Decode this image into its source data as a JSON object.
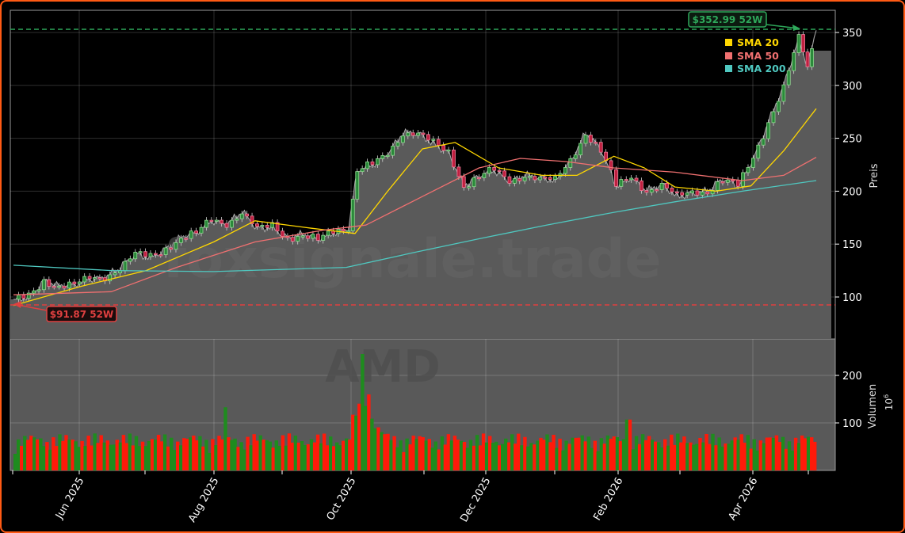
{
  "chart_data": {
    "type": "candlestick",
    "ticker": "AMD",
    "watermark": "foxsignale.trade",
    "ylabel": "Preis",
    "volume_ylabel": "Volumen",
    "volume_unit": "10^6",
    "price_ylim": [
      79,
      371
    ],
    "volume_ylim": [
      0,
      277
    ],
    "price_yticks": [
      100,
      150,
      200,
      250,
      300,
      350
    ],
    "volume_yticks": [
      100,
      200
    ],
    "xticks": [
      "Jun 2025",
      "Aug 2025",
      "Oct 2025",
      "Dec 2025",
      "Feb 2026",
      "Apr 2026"
    ],
    "legend": [
      {
        "label": "SMA 20",
        "color": "#ffd700"
      },
      {
        "label": "SMA 50",
        "color": "#f07070"
      },
      {
        "label": "SMA 200",
        "color": "#4fc8c0"
      }
    ],
    "high_52w": {
      "value": 352.99,
      "label": "$352.99 52W",
      "color": "#2ea85a"
    },
    "low_52w": {
      "value": 91.87,
      "label": "$91.87 52W",
      "color": "#e04040"
    },
    "close_series": [
      [
        "2025-05-01",
        97
      ],
      [
        "2025-05-08",
        100
      ],
      [
        "2025-05-15",
        115
      ],
      [
        "2025-05-22",
        111
      ],
      [
        "2025-05-29",
        112
      ],
      [
        "2025-06-05",
        117
      ],
      [
        "2025-06-12",
        118
      ],
      [
        "2025-06-19",
        128
      ],
      [
        "2025-06-26",
        141
      ],
      [
        "2025-07-03",
        137
      ],
      [
        "2025-07-10",
        145
      ],
      [
        "2025-07-17",
        157
      ],
      [
        "2025-07-24",
        161
      ],
      [
        "2025-07-31",
        172
      ],
      [
        "2025-08-07",
        168
      ],
      [
        "2025-08-14",
        181
      ],
      [
        "2025-08-21",
        165
      ],
      [
        "2025-08-28",
        166
      ],
      [
        "2025-09-04",
        155
      ],
      [
        "2025-09-11",
        160
      ],
      [
        "2025-09-18",
        155
      ],
      [
        "2025-09-25",
        160
      ],
      [
        "2025-10-02",
        164
      ],
      [
        "2025-10-06",
        220
      ],
      [
        "2025-10-13",
        225
      ],
      [
        "2025-10-20",
        235
      ],
      [
        "2025-10-27",
        255
      ],
      [
        "2025-11-03",
        255
      ],
      [
        "2025-11-10",
        245
      ],
      [
        "2025-11-17",
        236
      ],
      [
        "2025-11-24",
        205
      ],
      [
        "2025-12-01",
        215
      ],
      [
        "2025-12-08",
        220
      ],
      [
        "2025-12-15",
        208
      ],
      [
        "2025-12-22",
        215
      ],
      [
        "2025-12-29",
        213
      ],
      [
        "2026-01-05",
        210
      ],
      [
        "2026-01-12",
        228
      ],
      [
        "2026-01-19",
        255
      ],
      [
        "2026-01-26",
        240
      ],
      [
        "2026-02-02",
        205
      ],
      [
        "2026-02-09",
        212
      ],
      [
        "2026-02-16",
        200
      ],
      [
        "2026-02-23",
        207
      ],
      [
        "2026-03-02",
        195
      ],
      [
        "2026-03-09",
        198
      ],
      [
        "2026-03-16",
        200
      ],
      [
        "2026-03-23",
        212
      ],
      [
        "2026-03-30",
        205
      ],
      [
        "2026-04-06",
        230
      ],
      [
        "2026-04-13",
        265
      ],
      [
        "2026-04-20",
        300
      ],
      [
        "2026-04-27",
        345
      ],
      [
        "2026-05-01",
        318
      ],
      [
        "2026-05-05",
        352
      ]
    ],
    "sma20": [
      [
        "2025-05-01",
        92
      ],
      [
        "2025-06-01",
        110
      ],
      [
        "2025-07-01",
        125
      ],
      [
        "2025-08-01",
        152
      ],
      [
        "2025-08-20",
        172
      ],
      [
        "2025-09-15",
        165
      ],
      [
        "2025-10-05",
        160
      ],
      [
        "2025-10-20",
        200
      ],
      [
        "2025-11-05",
        240
      ],
      [
        "2025-11-20",
        246
      ],
      [
        "2025-12-10",
        222
      ],
      [
        "2025-12-30",
        215
      ],
      [
        "2026-01-15",
        215
      ],
      [
        "2026-02-01",
        233
      ],
      [
        "2026-02-15",
        222
      ],
      [
        "2026-03-01",
        204
      ],
      [
        "2026-03-20",
        200
      ],
      [
        "2026-04-05",
        205
      ],
      [
        "2026-04-20",
        238
      ],
      [
        "2026-05-05",
        278
      ]
    ],
    "sma50": [
      [
        "2025-05-01",
        102
      ],
      [
        "2025-06-15",
        105
      ],
      [
        "2025-07-15",
        128
      ],
      [
        "2025-08-20",
        152
      ],
      [
        "2025-09-20",
        163
      ],
      [
        "2025-10-10",
        168
      ],
      [
        "2025-11-05",
        195
      ],
      [
        "2025-12-01",
        222
      ],
      [
        "2025-12-20",
        231
      ],
      [
        "2026-01-10",
        228
      ],
      [
        "2026-02-01",
        222
      ],
      [
        "2026-03-01",
        218
      ],
      [
        "2026-04-01",
        210
      ],
      [
        "2026-04-20",
        215
      ],
      [
        "2026-05-05",
        232
      ]
    ],
    "sma200": [
      [
        "2025-05-01",
        130
      ],
      [
        "2025-06-15",
        125
      ],
      [
        "2025-08-01",
        124
      ],
      [
        "2025-10-01",
        128
      ],
      [
        "2025-11-01",
        142
      ],
      [
        "2025-12-01",
        155
      ],
      [
        "2026-01-01",
        168
      ],
      [
        "2026-02-01",
        180
      ],
      [
        "2026-03-01",
        190
      ],
      [
        "2026-04-01",
        200
      ],
      [
        "2026-05-05",
        210
      ]
    ],
    "volume_notes": "Daily volume bars (millions) colored green for up days, red for down days; peak ~245M in early Oct 2025."
  }
}
